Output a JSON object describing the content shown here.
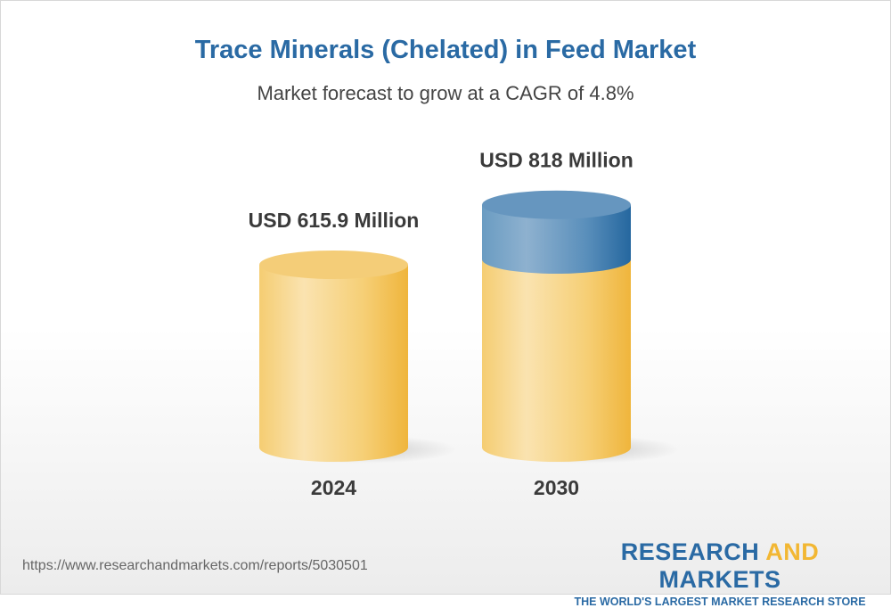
{
  "chart_data": {
    "type": "bar",
    "title": "Trace Minerals (Chelated) in Feed Market",
    "subtitle": "Market forecast to grow at a CAGR of 4.8%",
    "categories": [
      "2024",
      "2030"
    ],
    "values": [
      615.9,
      818
    ],
    "data_labels": [
      "USD 615.9 Million",
      "USD 818 Million"
    ],
    "unit": "USD Million",
    "style": "3d-cylinder",
    "colors": {
      "base": "#f2bd4a",
      "growth": "#2a6aa4"
    },
    "grid": false
  },
  "footer": {
    "url": "https://www.researchandmarkets.com/reports/5030501",
    "logo_word1": "RESEARCH",
    "logo_word2": "AND",
    "logo_word3": "MARKETS",
    "tagline": "THE WORLD'S LARGEST MARKET RESEARCH STORE"
  }
}
